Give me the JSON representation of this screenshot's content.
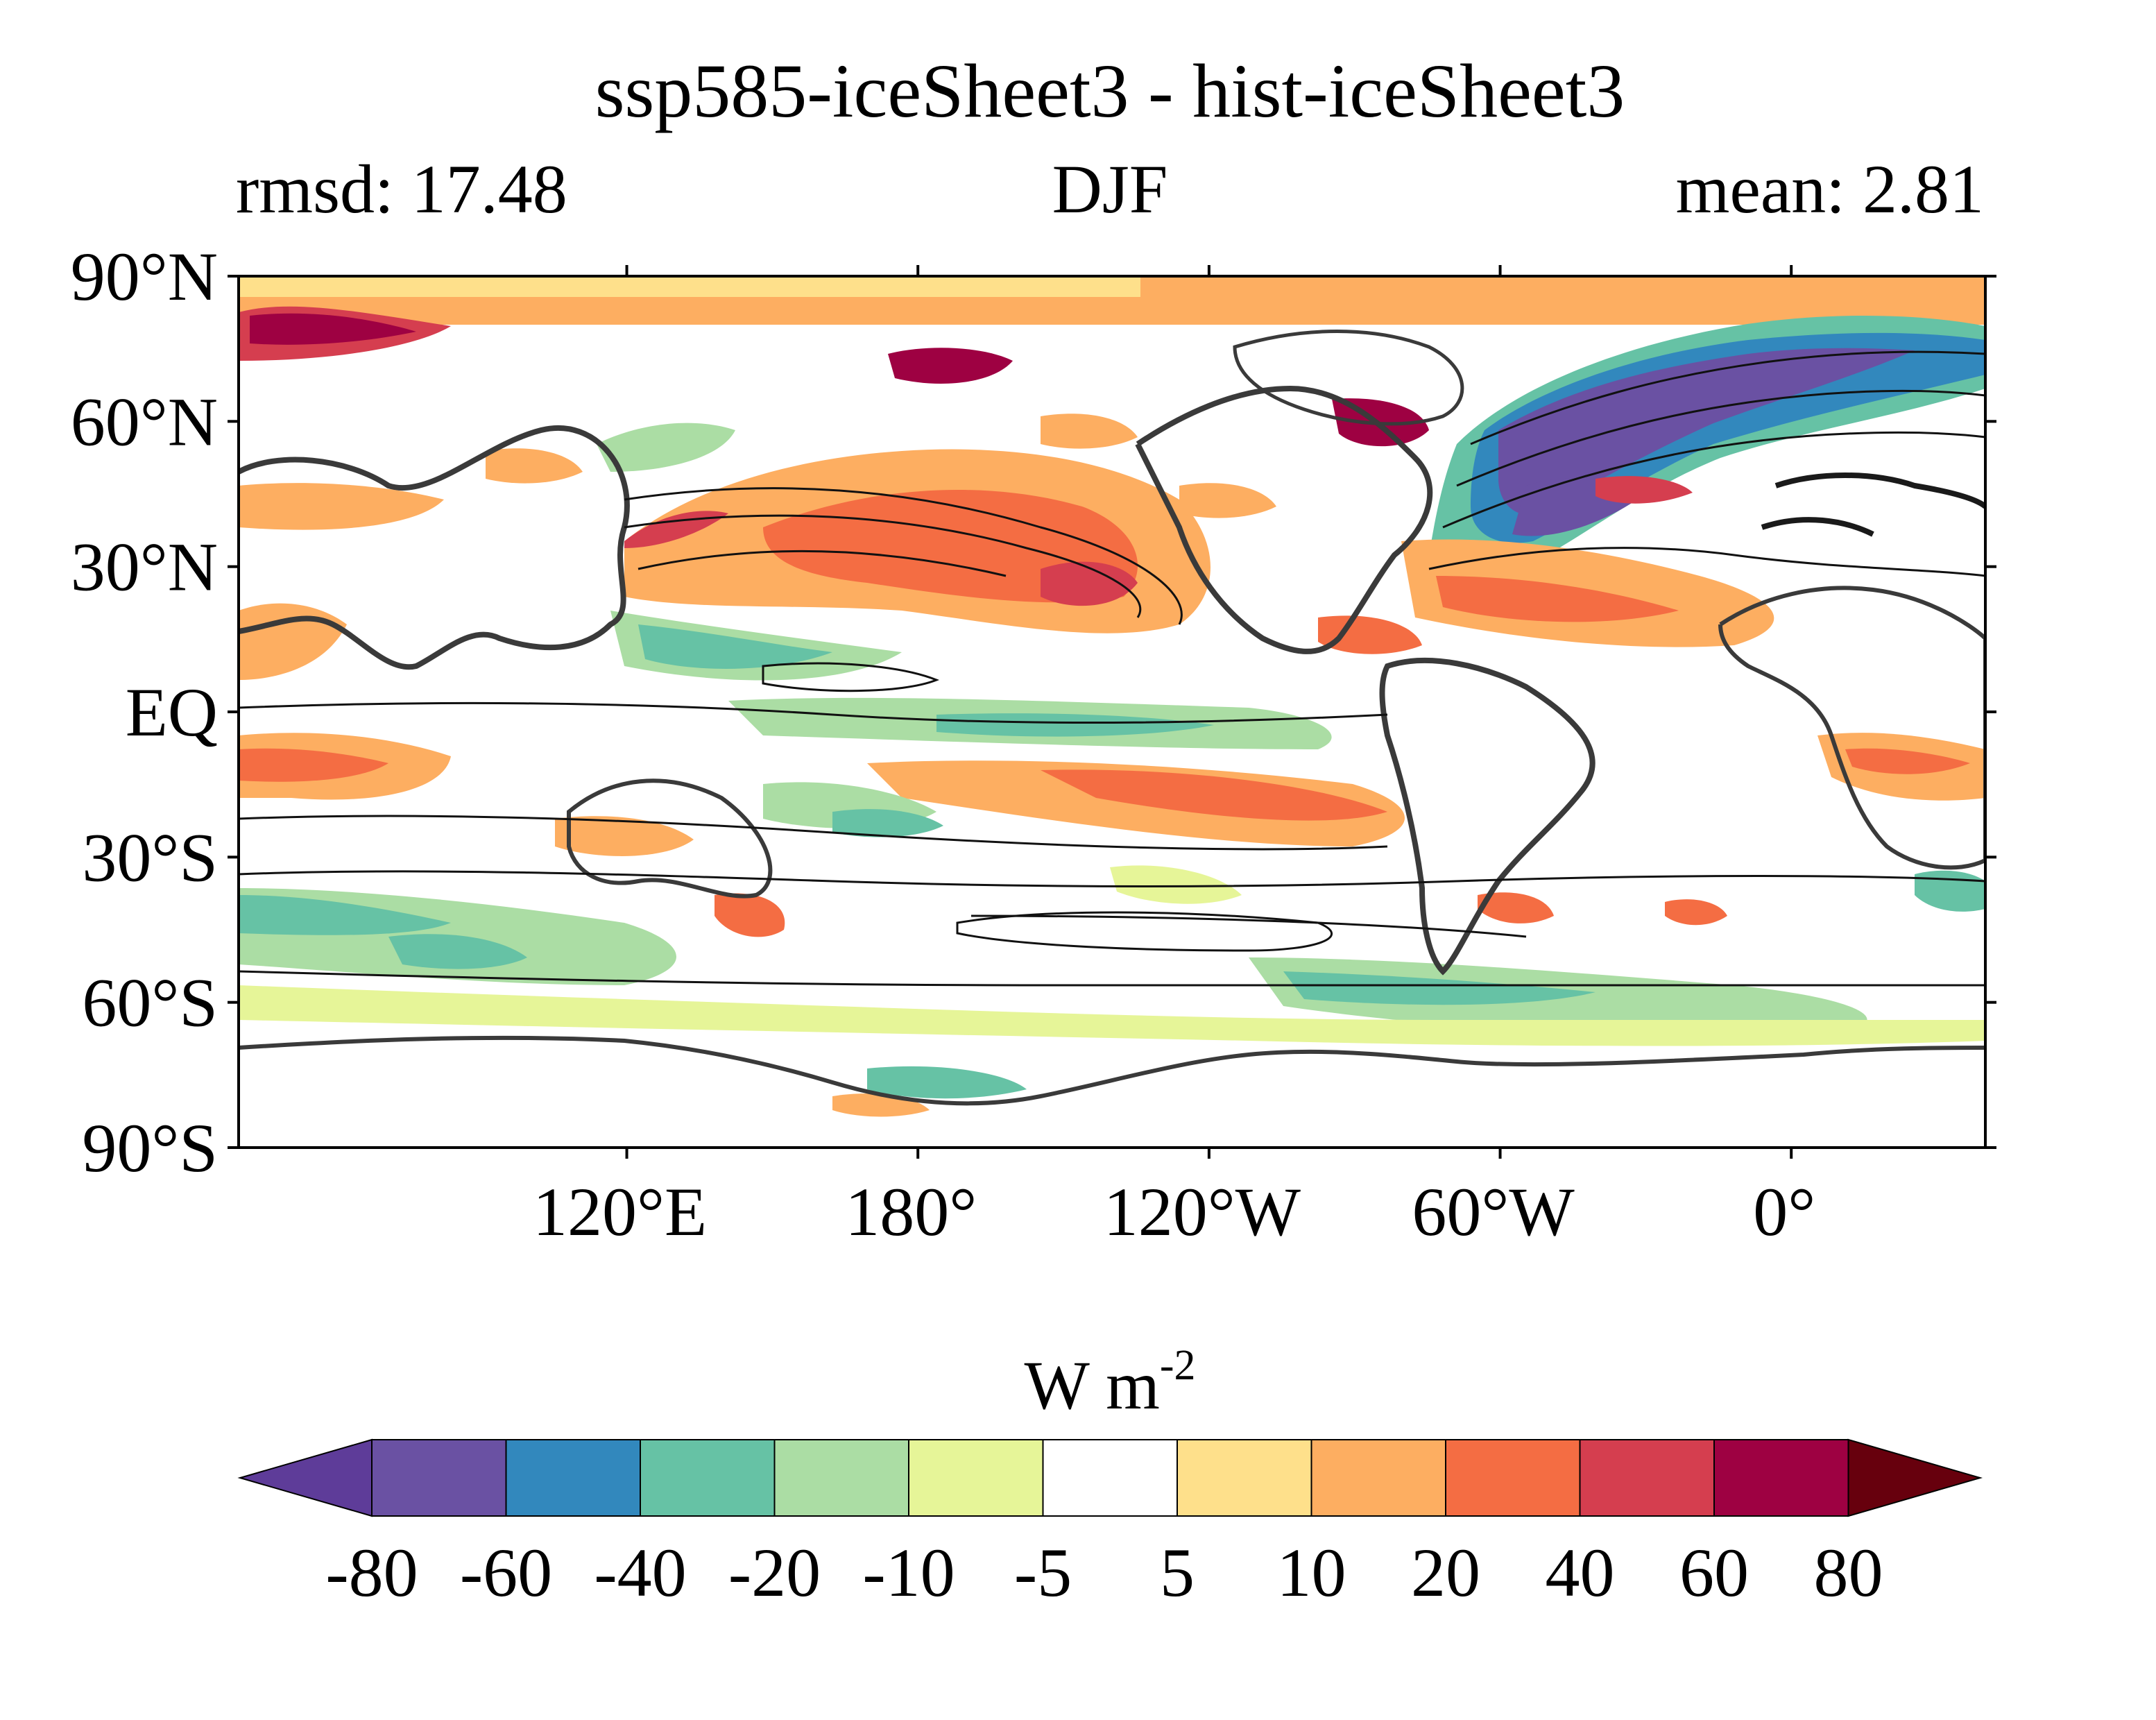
{
  "title": "ssp585-iceSheet3 - hist-iceSheet3",
  "subtitle": {
    "left": "rmsd: 17.48",
    "center": "DJF",
    "right": "mean: 2.81"
  },
  "map": {
    "projection": "equirectangular",
    "lon_range": [
      40,
      400
    ],
    "lat_range": [
      -90,
      90
    ],
    "lat_ticks": [
      {
        "value": 90,
        "label": "90°N"
      },
      {
        "value": 60,
        "label": "60°N"
      },
      {
        "value": 30,
        "label": "30°N"
      },
      {
        "value": 0,
        "label": "EQ"
      },
      {
        "value": -30,
        "label": "30°S"
      },
      {
        "value": -60,
        "label": "60°S"
      },
      {
        "value": -90,
        "label": "90°S"
      }
    ],
    "lon_ticks": [
      {
        "value": 120,
        "label": "120°E"
      },
      {
        "value": 180,
        "label": "180°"
      },
      {
        "value": 240,
        "label": "120°W"
      },
      {
        "value": 300,
        "label": "60°W"
      },
      {
        "value": 360,
        "label": "0°"
      }
    ],
    "features": [
      "filled anomaly contours",
      "black contour lines",
      "coastlines"
    ]
  },
  "colorbar": {
    "label_main": "W m",
    "label_sup": "-2",
    "orientation": "horizontal",
    "extend": "both",
    "tick_labels": [
      "-80",
      "-60",
      "-40",
      "-20",
      "-10",
      "-5",
      "5",
      "10",
      "20",
      "40",
      "60",
      "80"
    ],
    "colors": [
      "#5e3c99",
      "#6a51a3",
      "#3288bd",
      "#66c2a5",
      "#abdda4",
      "#e6f598",
      "#ffffff",
      "#fee08b",
      "#fdae61",
      "#f46d43",
      "#d53e4f",
      "#9e0142",
      "#67000d"
    ]
  }
}
